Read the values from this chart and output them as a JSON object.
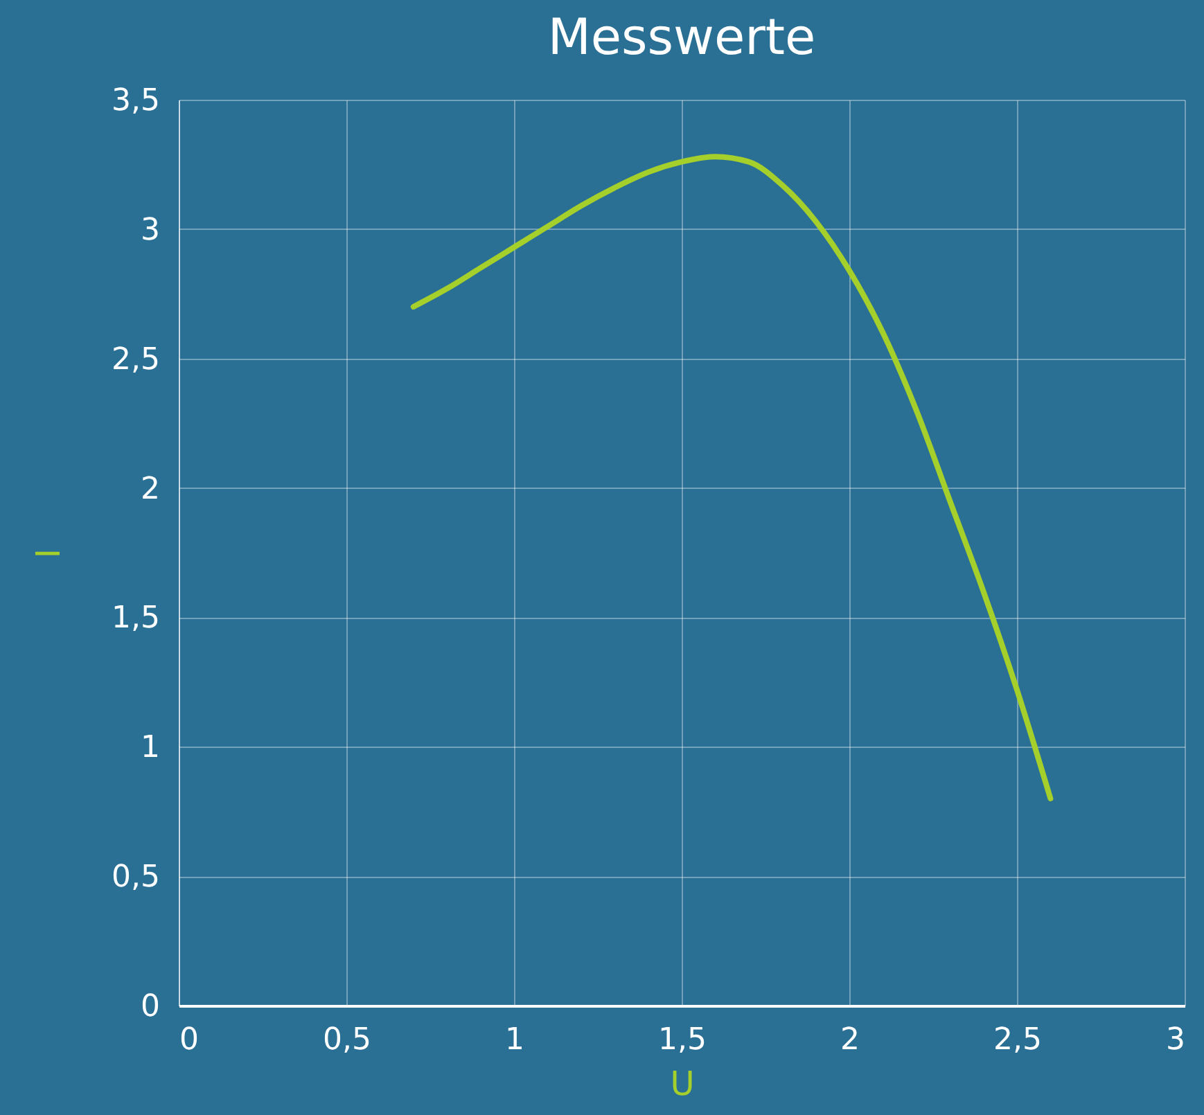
{
  "chart_data": {
    "type": "line",
    "title": "Messwerte",
    "xlabel": "U",
    "ylabel": "I",
    "x": [
      0.7,
      0.8,
      0.9,
      1.0,
      1.1,
      1.2,
      1.3,
      1.4,
      1.5,
      1.6,
      1.7,
      1.8,
      1.9,
      2.0,
      2.1,
      2.2,
      2.3,
      2.4,
      2.5,
      2.6
    ],
    "series": [
      {
        "color": "#a5cf2a",
        "values": [
          2.7,
          2.77,
          2.85,
          2.93,
          3.01,
          3.09,
          3.16,
          3.22,
          3.26,
          3.28,
          3.26,
          3.17,
          3.03,
          2.84,
          2.6,
          2.3,
          1.95,
          1.6,
          1.22,
          0.8
        ]
      }
    ],
    "xlim": [
      0,
      3
    ],
    "ylim": [
      0,
      3.5
    ],
    "xticks": [
      0,
      {
        "value": 0.5,
        "label": "0,5"
      },
      1,
      {
        "value": 1.5,
        "label": "1,5"
      },
      2,
      {
        "value": 2.5,
        "label": "2,5"
      },
      3
    ],
    "yticks": [
      0,
      {
        "value": 0.5,
        "label": "0,5"
      },
      1,
      {
        "value": 1.5,
        "label": "1,5"
      },
      2,
      {
        "value": 2.5,
        "label": "2,5"
      },
      3,
      {
        "value": 3.5,
        "label": "3,5"
      }
    ],
    "grid": true,
    "marker": "none",
    "line_style": "solid"
  }
}
